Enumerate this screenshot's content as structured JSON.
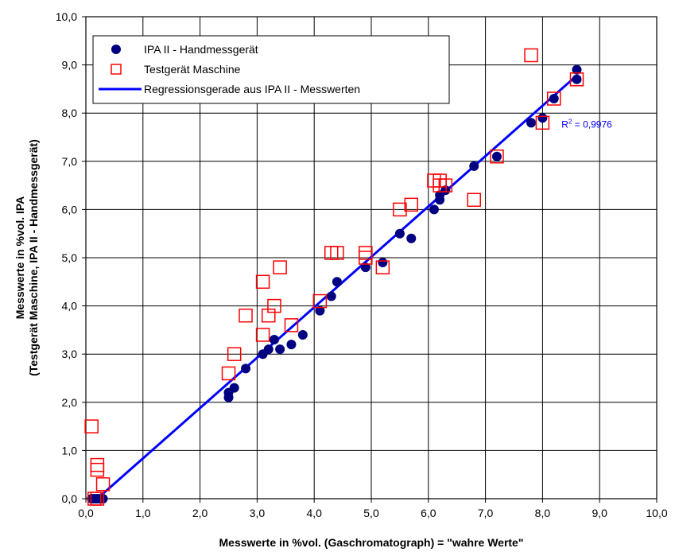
{
  "chart_data": {
    "type": "scatter",
    "xlabel": "Messwerte in %vol. (Gaschromatograph)  = \"wahre Werte\"",
    "ylabel_line1": "Messwerte in %vol. IPA",
    "ylabel_line2": "(Testgerät Maschine, IPA II - Handmessgerät)",
    "xlim": [
      0,
      10
    ],
    "ylim": [
      0,
      10
    ],
    "grid": true,
    "x_ticks": [
      "0,0",
      "1,0",
      "2,0",
      "3,0",
      "4,0",
      "5,0",
      "6,0",
      "7,0",
      "8,0",
      "9,0",
      "10,0"
    ],
    "y_ticks": [
      "0,0",
      "1,0",
      "2,0",
      "3,0",
      "4,0",
      "5,0",
      "6,0",
      "7,0",
      "8,0",
      "9,0",
      "10,0"
    ],
    "legend_position": "top-left",
    "r2_label": "R",
    "r2_sup": "2",
    "r2_value": " = 0,9976",
    "r2_at": [
      8.5,
      7.7
    ],
    "series": [
      {
        "name": "IPA II - Handmessgerät",
        "marker": "circle",
        "color": "#000080",
        "points": [
          [
            0.1,
            0.0
          ],
          [
            0.15,
            0.0
          ],
          [
            0.2,
            0.0
          ],
          [
            0.25,
            0.0
          ],
          [
            0.3,
            0.0
          ],
          [
            2.5,
            2.1
          ],
          [
            2.5,
            2.2
          ],
          [
            2.6,
            2.3
          ],
          [
            2.8,
            2.7
          ],
          [
            3.1,
            3.0
          ],
          [
            3.2,
            3.1
          ],
          [
            3.3,
            3.3
          ],
          [
            3.4,
            3.1
          ],
          [
            3.6,
            3.2
          ],
          [
            3.8,
            3.4
          ],
          [
            4.1,
            3.9
          ],
          [
            4.3,
            4.2
          ],
          [
            4.4,
            4.5
          ],
          [
            4.9,
            4.8
          ],
          [
            5.2,
            4.9
          ],
          [
            5.5,
            5.5
          ],
          [
            5.7,
            5.4
          ],
          [
            6.1,
            6.0
          ],
          [
            6.2,
            6.2
          ],
          [
            6.2,
            6.3
          ],
          [
            6.3,
            6.4
          ],
          [
            6.8,
            6.9
          ],
          [
            7.2,
            7.1
          ],
          [
            7.8,
            7.8
          ],
          [
            8.0,
            7.9
          ],
          [
            8.2,
            8.3
          ],
          [
            8.6,
            8.7
          ],
          [
            8.6,
            8.9
          ]
        ]
      },
      {
        "name": "Testgerät Maschine",
        "marker": "square",
        "color": "#ff0000",
        "points": [
          [
            0.1,
            1.5
          ],
          [
            0.2,
            0.6
          ],
          [
            0.2,
            0.7
          ],
          [
            0.15,
            0.0
          ],
          [
            0.2,
            0.0
          ],
          [
            0.3,
            0.3
          ],
          [
            2.5,
            2.6
          ],
          [
            2.6,
            3.0
          ],
          [
            2.8,
            3.8
          ],
          [
            3.1,
            3.4
          ],
          [
            3.1,
            4.5
          ],
          [
            3.2,
            3.8
          ],
          [
            3.3,
            4.0
          ],
          [
            3.4,
            4.8
          ],
          [
            3.6,
            3.6
          ],
          [
            4.1,
            4.1
          ],
          [
            4.3,
            5.1
          ],
          [
            4.4,
            5.1
          ],
          [
            4.9,
            5.0
          ],
          [
            4.9,
            5.1
          ],
          [
            5.2,
            4.8
          ],
          [
            5.5,
            6.0
          ],
          [
            5.7,
            6.1
          ],
          [
            6.1,
            6.6
          ],
          [
            6.2,
            6.5
          ],
          [
            6.3,
            6.5
          ],
          [
            6.2,
            6.6
          ],
          [
            6.8,
            6.2
          ],
          [
            7.2,
            7.1
          ],
          [
            7.8,
            9.2
          ],
          [
            8.0,
            7.8
          ],
          [
            8.2,
            8.3
          ],
          [
            8.6,
            8.7
          ]
        ]
      },
      {
        "name": "Regressionsgerade aus IPA II - Messwerten",
        "marker": "line",
        "color": "#0000ff",
        "x": [
          0.2,
          8.6
        ],
        "y": [
          0.0,
          8.78
        ]
      }
    ]
  }
}
